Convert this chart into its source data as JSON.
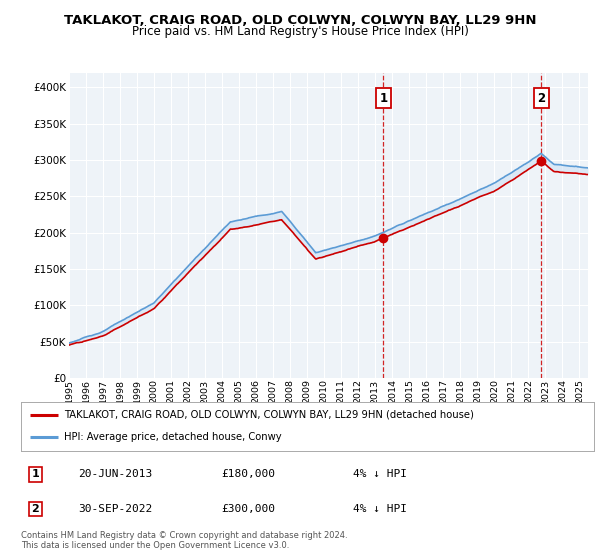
{
  "title": "TAKLAKOT, CRAIG ROAD, OLD COLWYN, COLWYN BAY, LL29 9HN",
  "subtitle": "Price paid vs. HM Land Registry's House Price Index (HPI)",
  "legend_line1": "TAKLAKOT, CRAIG ROAD, OLD COLWYN, COLWYN BAY, LL29 9HN (detached house)",
  "legend_line2": "HPI: Average price, detached house, Conwy",
  "annotation1_date": "20-JUN-2013",
  "annotation1_price": "£180,000",
  "annotation1_hpi": "4% ↓ HPI",
  "annotation2_date": "30-SEP-2022",
  "annotation2_price": "£300,000",
  "annotation2_hpi": "4% ↓ HPI",
  "footer": "Contains HM Land Registry data © Crown copyright and database right 2024.\nThis data is licensed under the Open Government Licence v3.0.",
  "hpi_color": "#5b9bd5",
  "hpi_fill_color": "#cfe2f3",
  "sale_color": "#cc0000",
  "dashed_color": "#cc0000",
  "background_color": "#ffffff",
  "plot_bg_color": "#eef3f8",
  "grid_color": "#ffffff",
  "ylim": [
    0,
    420000
  ],
  "yticks": [
    0,
    50000,
    100000,
    150000,
    200000,
    250000,
    300000,
    350000,
    400000
  ],
  "ytick_labels": [
    "£0",
    "£50K",
    "£100K",
    "£150K",
    "£200K",
    "£250K",
    "£300K",
    "£350K",
    "£400K"
  ],
  "sale1_x": 2013.47,
  "sale1_y": 180000,
  "sale2_x": 2022.75,
  "sale2_y": 300000,
  "xmin": 1995,
  "xmax": 2025.5,
  "xticks": [
    1995,
    1996,
    1997,
    1998,
    1999,
    2000,
    2001,
    2002,
    2003,
    2004,
    2005,
    2006,
    2007,
    2008,
    2009,
    2010,
    2011,
    2012,
    2013,
    2014,
    2015,
    2016,
    2017,
    2018,
    2019,
    2020,
    2021,
    2022,
    2023,
    2024,
    2025
  ]
}
